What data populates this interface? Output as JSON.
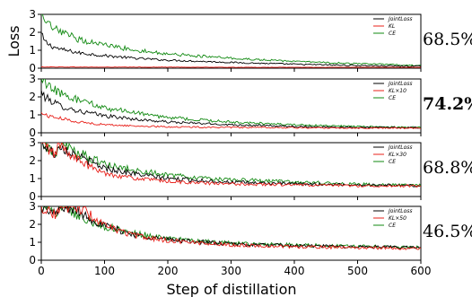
{
  "chart_data": {
    "type": "line",
    "xlabel": "Step of distillation",
    "ylabel": "Loss",
    "xlim": [
      0,
      600
    ],
    "xticks": [
      "0",
      "100",
      "200",
      "300",
      "400",
      "500",
      "600"
    ],
    "yticks": [
      "0",
      "1",
      "2",
      "3"
    ],
    "grid": false,
    "legend_position": "top-right",
    "colors": {
      "JointLoss": "#000000",
      "KL": "#e8201a",
      "CE": "#128a12"
    },
    "panels": [
      {
        "accuracy": "68.5%",
        "bold": false,
        "ylim": [
          0,
          3
        ],
        "legend": [
          "JointLoss",
          "KL",
          "CE"
        ],
        "series": [
          {
            "name": "JointLoss",
            "x": [
              0,
              5,
              15,
              30,
              60,
              100,
              150,
              200,
              300,
              400,
              500,
              600
            ],
            "y": [
              1.9,
              1.5,
              1.25,
              1.05,
              0.85,
              0.7,
              0.55,
              0.45,
              0.32,
              0.22,
              0.15,
              0.1
            ]
          },
          {
            "name": "KL",
            "x": [
              0,
              100,
              200,
              300,
              400,
              500,
              600
            ],
            "y": [
              0.07,
              0.06,
              0.06,
              0.05,
              0.05,
              0.05,
              0.05
            ]
          },
          {
            "name": "CE",
            "x": [
              0,
              5,
              15,
              30,
              60,
              100,
              150,
              200,
              300,
              400,
              500,
              600
            ],
            "y": [
              3.0,
              2.6,
              2.3,
              2.0,
              1.6,
              1.3,
              1.0,
              0.8,
              0.55,
              0.38,
              0.25,
              0.15
            ]
          }
        ]
      },
      {
        "accuracy": "74.2%",
        "bold": true,
        "ylim": [
          0,
          3
        ],
        "legend": [
          "JointLoss",
          "KL×10",
          "CE"
        ],
        "series": [
          {
            "name": "JointLoss",
            "x": [
              0,
              5,
              15,
              30,
              60,
              100,
              150,
              200,
              300,
              400,
              500,
              600
            ],
            "y": [
              2.3,
              2.0,
              1.8,
              1.5,
              1.2,
              0.95,
              0.75,
              0.6,
              0.45,
              0.35,
              0.3,
              0.28
            ]
          },
          {
            "name": "KL×10",
            "x": [
              0,
              10,
              30,
              60,
              100,
              150,
              200,
              300,
              400,
              500,
              600
            ],
            "y": [
              1.1,
              0.95,
              0.8,
              0.6,
              0.45,
              0.38,
              0.33,
              0.3,
              0.28,
              0.27,
              0.26
            ]
          },
          {
            "name": "CE",
            "x": [
              0,
              5,
              15,
              30,
              60,
              100,
              150,
              200,
              300,
              400,
              500,
              600
            ],
            "y": [
              3.0,
              2.8,
              2.5,
              2.2,
              1.8,
              1.4,
              1.1,
              0.85,
              0.6,
              0.45,
              0.35,
              0.3
            ]
          }
        ]
      },
      {
        "accuracy": "68.8%",
        "bold": false,
        "ylim": [
          0,
          3
        ],
        "legend": [
          "JointLoss",
          "KL×30",
          "CE"
        ],
        "series": [
          {
            "name": "JointLoss",
            "x": [
              0,
              10,
              20,
              24,
              26,
              40,
              60,
              80,
              100,
              150,
              200,
              250,
              300,
              400,
              500,
              600
            ],
            "y": [
              3.0,
              2.7,
              2.4,
              2.3,
              3.0,
              2.6,
              2.2,
              1.9,
              1.6,
              1.25,
              1.0,
              0.9,
              0.8,
              0.7,
              0.65,
              0.6
            ]
          },
          {
            "name": "KL×30",
            "x": [
              0,
              10,
              20,
              24,
              26,
              40,
              60,
              80,
              100,
              150,
              200,
              250,
              300,
              400,
              500,
              600
            ],
            "y": [
              3.0,
              2.7,
              2.4,
              2.3,
              3.0,
              2.5,
              2.0,
              1.6,
              1.3,
              1.0,
              0.85,
              0.75,
              0.7,
              0.65,
              0.6,
              0.58
            ]
          },
          {
            "name": "CE",
            "x": [
              0,
              10,
              20,
              24,
              26,
              40,
              60,
              80,
              100,
              150,
              200,
              250,
              300,
              400,
              500,
              600
            ],
            "y": [
              3.0,
              2.75,
              2.5,
              2.4,
              3.0,
              2.7,
              2.4,
              2.1,
              1.8,
              1.45,
              1.2,
              1.05,
              0.95,
              0.8,
              0.7,
              0.62
            ]
          }
        ]
      },
      {
        "accuracy": "46.5%",
        "bold": false,
        "ylim": [
          0,
          3
        ],
        "legend": [
          "JointLoss",
          "KL×50",
          "CE"
        ],
        "series": [
          {
            "name": "JointLoss",
            "x": [
              0,
              10,
              20,
              24,
              30,
              40,
              55,
              70,
              85,
              100,
              150,
              200,
              300,
              400,
              500,
              600
            ],
            "y": [
              3.0,
              2.8,
              2.6,
              2.5,
              3.0,
              3.0,
              2.8,
              2.5,
              2.2,
              1.9,
              1.4,
              1.15,
              0.9,
              0.8,
              0.75,
              0.7
            ]
          },
          {
            "name": "KL×50",
            "x": [
              0,
              10,
              20,
              24,
              30,
              40,
              55,
              70,
              85,
              100,
              150,
              200,
              300,
              400,
              500,
              600
            ],
            "y": [
              3.0,
              2.8,
              2.6,
              2.5,
              3.0,
              3.0,
              3.0,
              2.7,
              2.3,
              1.9,
              1.35,
              1.1,
              0.85,
              0.75,
              0.7,
              0.65
            ]
          },
          {
            "name": "CE",
            "x": [
              0,
              10,
              20,
              24,
              30,
              40,
              55,
              70,
              85,
              100,
              150,
              200,
              300,
              400,
              500,
              600
            ],
            "y": [
              3.0,
              2.8,
              2.6,
              2.5,
              3.0,
              3.0,
              2.6,
              2.3,
              2.1,
              1.9,
              1.5,
              1.2,
              0.95,
              0.85,
              0.78,
              0.72
            ]
          }
        ]
      }
    ]
  }
}
